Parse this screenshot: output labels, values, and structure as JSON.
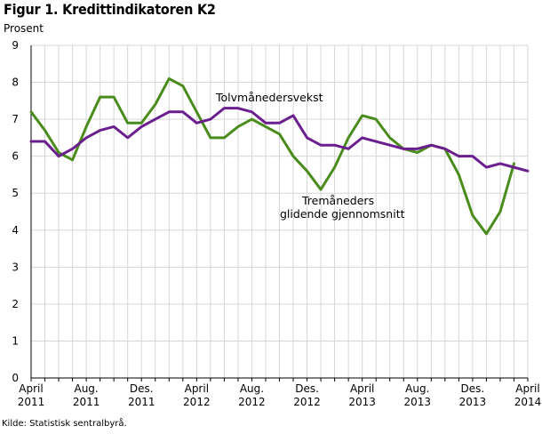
{
  "figure": {
    "title": "Figur 1. Kredittindikatoren K2",
    "source": "Kilde: Statistisk sentralbyrå."
  },
  "chart_data": {
    "type": "line",
    "ylabel": "Prosent",
    "ylim": [
      0,
      9
    ],
    "yticks": [
      0,
      1,
      2,
      3,
      4,
      5,
      6,
      7,
      8,
      9
    ],
    "grid": true,
    "x": [
      "2011-04",
      "2011-05",
      "2011-06",
      "2011-07",
      "2011-08",
      "2011-09",
      "2011-10",
      "2011-11",
      "2011-12",
      "2012-01",
      "2012-02",
      "2012-03",
      "2012-04",
      "2012-05",
      "2012-06",
      "2012-07",
      "2012-08",
      "2012-09",
      "2012-10",
      "2012-11",
      "2012-12",
      "2013-01",
      "2013-02",
      "2013-03",
      "2013-04",
      "2013-05",
      "2013-06",
      "2013-07",
      "2013-08",
      "2013-09",
      "2013-10",
      "2013-11",
      "2013-12",
      "2014-01",
      "2014-02",
      "2014-03",
      "2014-04"
    ],
    "xtick_labels": [
      {
        "index": 0,
        "line1": "April",
        "line2": "2011"
      },
      {
        "index": 4,
        "line1": "Aug.",
        "line2": "2011"
      },
      {
        "index": 8,
        "line1": "Des.",
        "line2": "2011"
      },
      {
        "index": 12,
        "line1": "April",
        "line2": "2012"
      },
      {
        "index": 16,
        "line1": "Aug.",
        "line2": "2012"
      },
      {
        "index": 20,
        "line1": "Des.",
        "line2": "2012"
      },
      {
        "index": 24,
        "line1": "April",
        "line2": "2013"
      },
      {
        "index": 28,
        "line1": "Aug.",
        "line2": "2013"
      },
      {
        "index": 32,
        "line1": "Des.",
        "line2": "2013"
      },
      {
        "index": 36,
        "line1": "April",
        "line2": "2014"
      }
    ],
    "series": [
      {
        "name": "Tolvmånedersvekst",
        "color": "#6b1f8f",
        "values": [
          6.4,
          6.4,
          6.0,
          6.2,
          6.5,
          6.7,
          6.8,
          6.5,
          6.8,
          7.0,
          7.2,
          7.2,
          6.9,
          7.0,
          7.3,
          7.3,
          7.2,
          6.9,
          6.9,
          7.1,
          6.5,
          6.3,
          6.3,
          6.2,
          6.5,
          6.4,
          6.3,
          6.2,
          6.2,
          6.3,
          6.2,
          6.0,
          6.0,
          5.7,
          5.8,
          5.7,
          5.6
        ]
      },
      {
        "name_lines": [
          "Tremåneders",
          "glidende gjennomsnitt"
        ],
        "color": "#4a8c1c",
        "values": [
          7.2,
          6.7,
          6.1,
          5.9,
          6.8,
          7.6,
          7.6,
          6.9,
          6.9,
          7.4,
          8.1,
          7.9,
          7.2,
          6.5,
          6.5,
          6.8,
          7.0,
          6.8,
          6.6,
          6.0,
          5.6,
          5.1,
          5.7,
          6.5,
          7.1,
          7.0,
          6.5,
          6.2,
          6.1,
          6.3,
          6.2,
          5.5,
          4.4,
          3.9,
          4.5,
          5.8,
          null
        ]
      }
    ]
  }
}
